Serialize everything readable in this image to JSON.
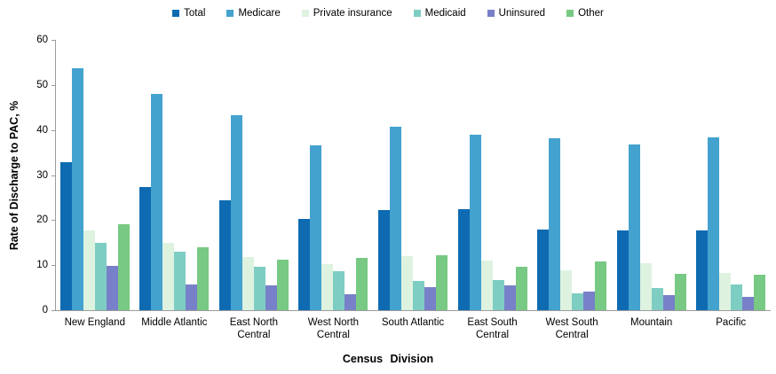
{
  "chart_data": {
    "type": "bar",
    "title": "",
    "xlabel": "Census Division",
    "ylabel": "Rate of Discharge to PAC, %",
    "ylim": [
      0,
      60
    ],
    "ytick_step": 10,
    "grid": false,
    "legend_position": "top",
    "categories": [
      "New England",
      "Middle Atlantic",
      "East North\nCentral",
      "West North\nCentral",
      "South Atlantic",
      "East South\nCentral",
      "West South\nCentral",
      "Mountain",
      "Pacific"
    ],
    "series": [
      {
        "name": "Total",
        "color": "#0e6bb2",
        "values": [
          32.9,
          27.4,
          24.4,
          20.2,
          22.3,
          22.4,
          17.9,
          17.7,
          17.7
        ]
      },
      {
        "name": "Medicare",
        "color": "#44a2cf",
        "values": [
          53.7,
          48.1,
          43.3,
          36.5,
          40.8,
          39.0,
          38.2,
          36.7,
          38.4
        ]
      },
      {
        "name": "Private insurance",
        "color": "#def2e0",
        "values": [
          17.8,
          15.0,
          11.8,
          10.2,
          12.0,
          11.0,
          8.8,
          10.4,
          8.2
        ]
      },
      {
        "name": "Medicaid",
        "color": "#7ecdc3",
        "values": [
          15.0,
          12.9,
          9.7,
          8.6,
          6.4,
          6.7,
          3.7,
          5.0,
          5.8
        ]
      },
      {
        "name": "Uninsured",
        "color": "#7780c8",
        "values": [
          9.8,
          5.7,
          5.5,
          3.5,
          5.1,
          5.6,
          4.2,
          3.3,
          2.9
        ]
      },
      {
        "name": "Other",
        "color": "#77c983",
        "values": [
          19.1,
          14.0,
          11.3,
          11.6,
          12.2,
          9.7,
          10.8,
          8.1,
          7.9
        ]
      }
    ],
    "axis_color": "#9b9b9b"
  }
}
